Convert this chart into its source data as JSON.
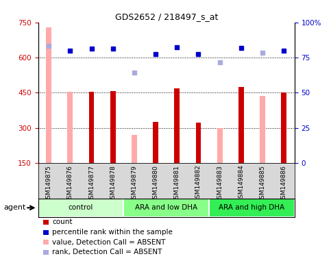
{
  "title": "GDS2652 / 218497_s_at",
  "samples": [
    "GSM149875",
    "GSM149876",
    "GSM149877",
    "GSM149878",
    "GSM149879",
    "GSM149880",
    "GSM149881",
    "GSM149882",
    "GSM149883",
    "GSM149884",
    "GSM149885",
    "GSM149886"
  ],
  "groups": [
    {
      "label": "control",
      "start": 0,
      "end": 3,
      "color": "#ccffcc"
    },
    {
      "label": "ARA and low DHA",
      "start": 4,
      "end": 7,
      "color": "#88ff88"
    },
    {
      "label": "ARA and high DHA",
      "start": 8,
      "end": 11,
      "color": "#33ee55"
    }
  ],
  "bar_values": [
    null,
    null,
    453,
    458,
    null,
    325,
    468,
    323,
    null,
    473,
    null,
    450
  ],
  "bar_absent": [
    728,
    453,
    null,
    null,
    270,
    null,
    null,
    null,
    300,
    null,
    435,
    null
  ],
  "percentile_values": [
    null,
    630,
    638,
    638,
    null,
    615,
    645,
    615,
    null,
    640,
    null,
    630
  ],
  "percentile_absent": [
    650,
    null,
    null,
    null,
    535,
    null,
    null,
    null,
    580,
    null,
    620,
    null
  ],
  "ylim_left": [
    150,
    750
  ],
  "ylim_right": [
    0,
    100
  ],
  "yticks_left": [
    150,
    300,
    450,
    600,
    750
  ],
  "yticks_right": [
    0,
    25,
    50,
    75,
    100
  ],
  "bar_color": "#cc0000",
  "bar_absent_color": "#ffaaaa",
  "percentile_color": "#0000cc",
  "percentile_absent_color": "#aaaadd",
  "axis_label_color_left": "#cc0000",
  "axis_label_color_right": "#0000cc",
  "legend_items": [
    {
      "label": "count",
      "color": "#cc0000"
    },
    {
      "label": "percentile rank within the sample",
      "color": "#0000cc"
    },
    {
      "label": "value, Detection Call = ABSENT",
      "color": "#ffaaaa"
    },
    {
      "label": "rank, Detection Call = ABSENT",
      "color": "#aaaadd"
    }
  ],
  "agent_label": "agent",
  "bar_width": 0.25,
  "grid_lines": [
    300,
    450,
    600
  ],
  "n_samples": 12
}
